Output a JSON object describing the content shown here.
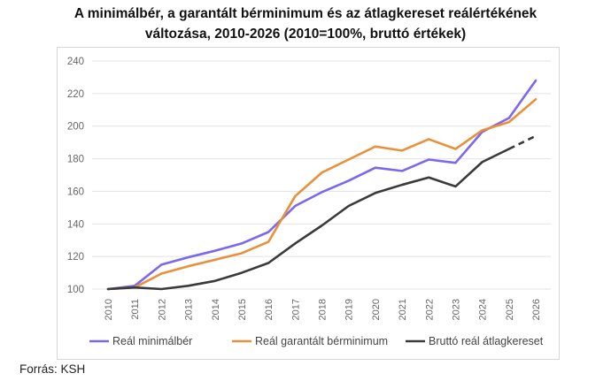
{
  "chart_data": {
    "type": "line",
    "title": "A minimálbér, a garantált bérminimum és az átlagkereset reálértékének változása, 2010-2026 (2010=100%, bruttó értékek)",
    "title_lines": [
      "A minimálbér, a garantált bérminimum és az átlagkereset reálértékének",
      "változása, 2010-2026 (2010=100%, bruttó értékek)"
    ],
    "x": [
      "2010",
      "2011",
      "2012",
      "2013",
      "2014",
      "2015",
      "2016",
      "2017",
      "2018",
      "2019",
      "2020",
      "2021",
      "2022",
      "2023",
      "2024",
      "2025",
      "2026"
    ],
    "ylim": [
      100,
      240
    ],
    "yticks": [
      100,
      120,
      140,
      160,
      180,
      200,
      220,
      240
    ],
    "grid": true,
    "legend_position": "bottom",
    "series": [
      {
        "name": "Reál minimálbér",
        "color": "#7b68ee",
        "values": [
          100,
          102,
          115,
          119.5,
          123.5,
          128,
          135,
          151,
          159.5,
          166.5,
          174.5,
          172.5,
          179.5,
          177.5,
          196.5,
          205,
          228
        ]
      },
      {
        "name": "Reál garantált bérminimum",
        "color": "#e8903a",
        "values": [
          100,
          101,
          109.5,
          114,
          118,
          122,
          129,
          157,
          171.5,
          179.5,
          187.5,
          185,
          192,
          186,
          197.5,
          202.5,
          216.5
        ]
      },
      {
        "name": "Bruttó reál átlagkereset",
        "color": "#3a3a3a",
        "values": [
          100,
          101,
          100,
          102,
          105,
          110,
          116,
          128,
          139,
          151,
          159,
          164,
          168.5,
          163,
          178,
          186,
          194
        ],
        "dashed_from_index": 15
      }
    ]
  },
  "source": "Forrás: KSH"
}
